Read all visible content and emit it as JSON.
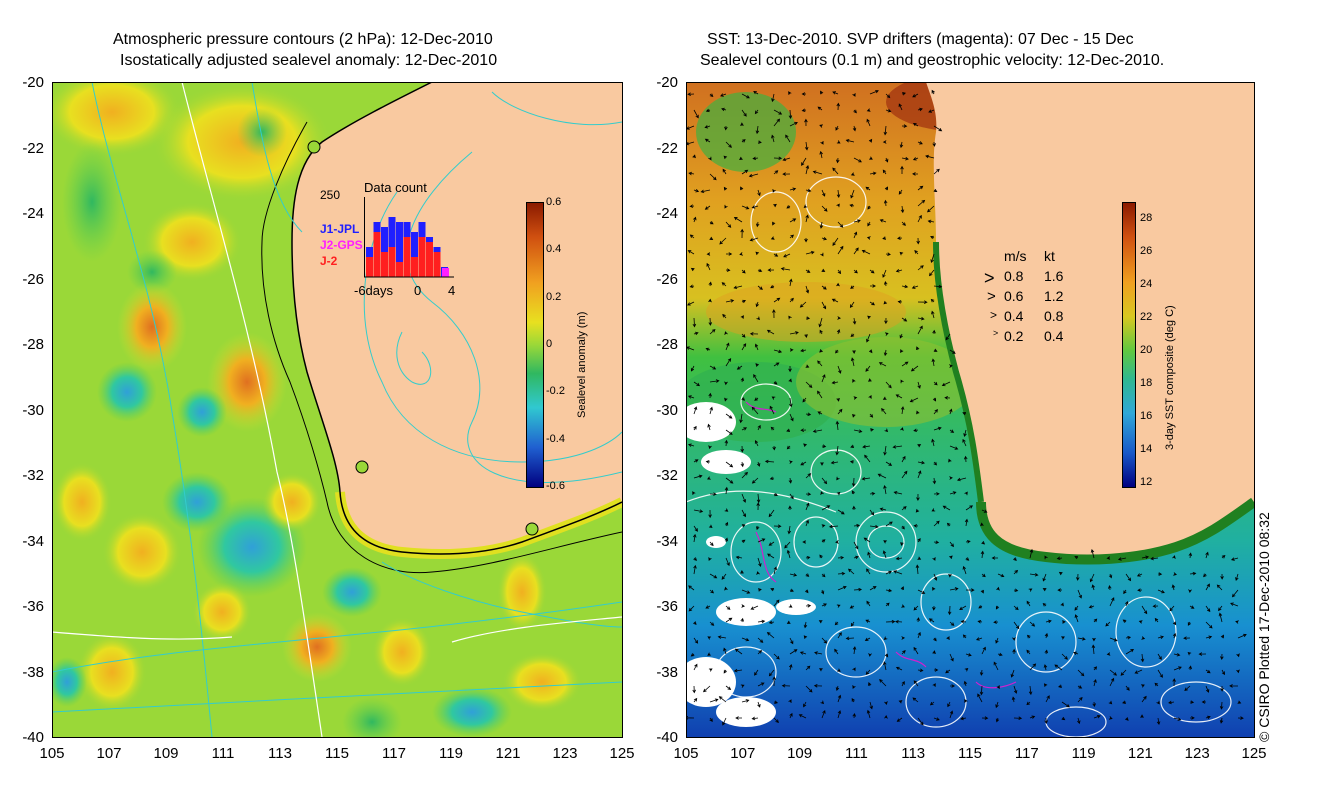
{
  "left_panel": {
    "title_line1": "Atmospheric pressure contours (2 hPa): 12-Dec-2010",
    "title_line2": "Isostatically adjusted sealevel anomaly: 12-Dec-2010",
    "colorbar": {
      "label": "Sealevel anomaly (m)",
      "ticks": [
        "0.6",
        "0.4",
        "0.2",
        "0",
        "-0.2",
        "-0.4",
        "-0.6"
      ]
    },
    "data_count": {
      "title": "Data count",
      "ymax_label": "250",
      "series": [
        {
          "name": "J1-JPL",
          "color": "#1f1fff"
        },
        {
          "name": "J2-GPS",
          "color": "#ff1fff"
        },
        {
          "name": "J-2",
          "color": "#ff1f1f"
        }
      ],
      "xlabels": [
        "-6days",
        "0",
        "4"
      ]
    }
  },
  "right_panel": {
    "title_line1": "SST: 13-Dec-2010. SVP drifters (magenta): 07 Dec - 15 Dec",
    "title_line2": "Sealevel contours (0.1 m) and geostrophic velocity: 12-Dec-2010.",
    "colorbar": {
      "label": "3-day SST composite (deg C)",
      "ticks": [
        "28",
        "26",
        "24",
        "22",
        "20",
        "18",
        "16",
        "14",
        "12"
      ]
    },
    "velocity_legend": {
      "header_ms": "m/s",
      "header_kt": "kt",
      "rows": [
        {
          "ms": "0.8",
          "kt": "1.6"
        },
        {
          "ms": "0.6",
          "kt": "1.2"
        },
        {
          "ms": "0.4",
          "kt": "0.8"
        },
        {
          "ms": "0.2",
          "kt": "0.4"
        }
      ]
    }
  },
  "y_axis_labels": [
    "-20",
    "-22",
    "-24",
    "-26",
    "-28",
    "-30",
    "-32",
    "-34",
    "-36",
    "-38",
    "-40"
  ],
  "x_axis_labels": [
    "105",
    "107",
    "109",
    "111",
    "113",
    "115",
    "117",
    "119",
    "121",
    "123",
    "125"
  ],
  "copyright": "© CSIRO Plotted 17-Dec-2010 08:32",
  "colors": {
    "land": "#f9c9a0",
    "contour_cyan": "#33cccc"
  }
}
